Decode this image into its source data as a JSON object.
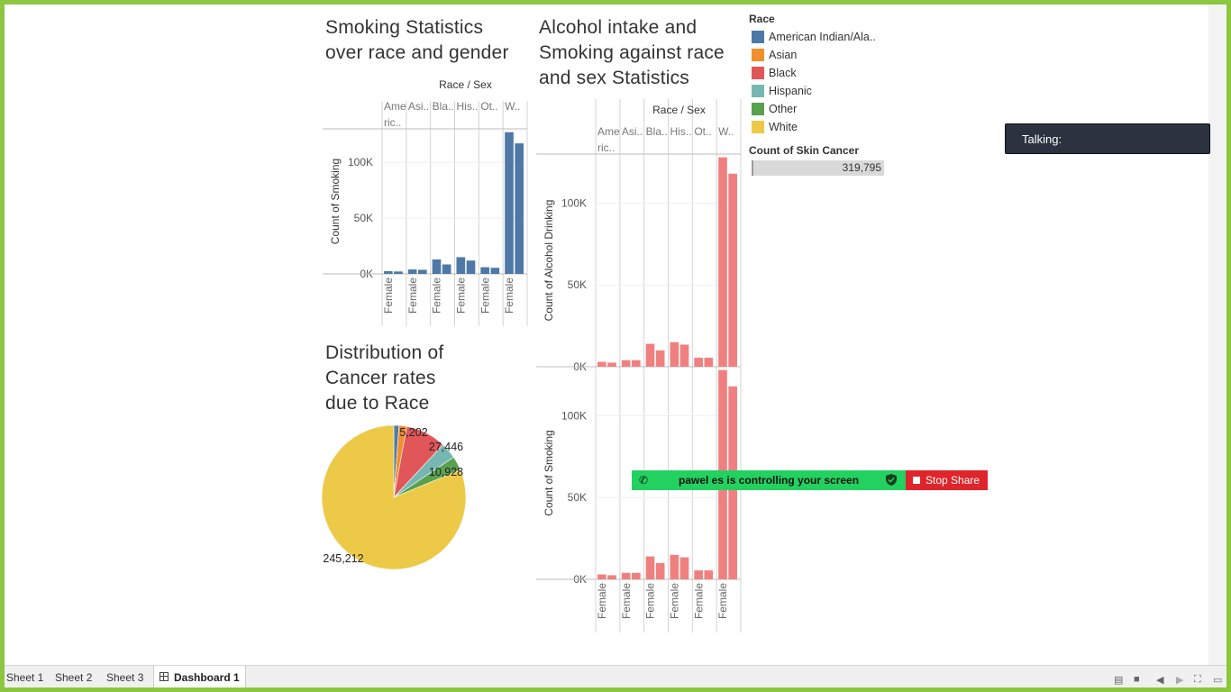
{
  "titles": {
    "smoking": "Smoking Statistics over race and gender",
    "alcohol": "Alcohol intake and Smoking against race and sex Statistics",
    "pie": "Distribution of Cancer rates due to Race"
  },
  "legend": {
    "title": "Race",
    "items": [
      {
        "label": "American Indian/Ala..",
        "color": "#4e79a7"
      },
      {
        "label": "Asian",
        "color": "#f28e2b"
      },
      {
        "label": "Black",
        "color": "#e15759"
      },
      {
        "label": "Hispanic",
        "color": "#76b7b2"
      },
      {
        "label": "Other",
        "color": "#59a14f"
      },
      {
        "label": "White",
        "color": "#edc948"
      }
    ]
  },
  "skin_cancer": {
    "title": "Count of Skin Cancer",
    "value": "319,795"
  },
  "overlay": {
    "talking": "Talking:",
    "share_message": "pawel es is controlling your screen",
    "stop_share": "Stop Share"
  },
  "tabs": [
    {
      "label": "Sheet 1",
      "active": false
    },
    {
      "label": "Sheet 2",
      "active": false
    },
    {
      "label": "Sheet 3",
      "active": false
    },
    {
      "label": "Dashboard 1",
      "active": true
    }
  ],
  "chart_data": [
    {
      "id": "smoking",
      "type": "bar",
      "header": "Race / Sex",
      "race_labels": [
        "Ame ric..",
        "Asi..",
        "Bla..",
        "His..",
        "Ot..",
        "W.."
      ],
      "sex_labels": [
        "Female",
        "Female",
        "Female",
        "Female",
        "Female",
        "Female"
      ],
      "ylabel": "Count of Smoking",
      "yticks": [
        "0K",
        "50K",
        "100K"
      ],
      "ylim": [
        0,
        130000
      ],
      "color": "#4e79a7",
      "values": [
        2500,
        2200,
        4000,
        3700,
        13000,
        8500,
        15000,
        12000,
        6000,
        5500,
        127000,
        117000
      ]
    },
    {
      "id": "alcohol",
      "type": "bar",
      "header": "Race / Sex",
      "race_labels": [
        "Ame ric..",
        "Asi..",
        "Bla..",
        "His..",
        "Ot..",
        "W.."
      ],
      "sex_labels": [
        "Female",
        "Female",
        "Female",
        "Female",
        "Female",
        "Female"
      ],
      "color": "#f08080",
      "panes": [
        {
          "ylabel": "Count of Alcohol Drinking",
          "yticks": [
            "0K",
            "50K",
            "100K"
          ],
          "ylim": [
            0,
            130000
          ],
          "values": [
            3000,
            2500,
            4000,
            4000,
            14000,
            10000,
            15000,
            13500,
            5500,
            5500,
            128000,
            118000
          ]
        },
        {
          "ylabel": "Count of Smoking",
          "yticks": [
            "0K",
            "50K",
            "100K"
          ],
          "ylim": [
            0,
            130000
          ],
          "values": [
            3000,
            2500,
            4000,
            4000,
            14000,
            10000,
            15000,
            13500,
            5500,
            5500,
            128000,
            118000
          ]
        }
      ]
    },
    {
      "id": "pie",
      "type": "pie",
      "labels": [
        "American Indian/Ala..",
        "Asian",
        "Black",
        "Hispanic",
        "Other",
        "White"
      ],
      "values": [
        3500,
        5202,
        27446,
        10928,
        9500,
        245212
      ],
      "colors": [
        "#4e79a7",
        "#f28e2b",
        "#e15759",
        "#76b7b2",
        "#59a14f",
        "#edc948"
      ],
      "data_labels": [
        {
          "index": 1,
          "text": "5,202"
        },
        {
          "index": 2,
          "text": "27,446"
        },
        {
          "index": 3,
          "text": "10,928"
        },
        {
          "index": 5,
          "text": "245,212"
        }
      ]
    }
  ]
}
